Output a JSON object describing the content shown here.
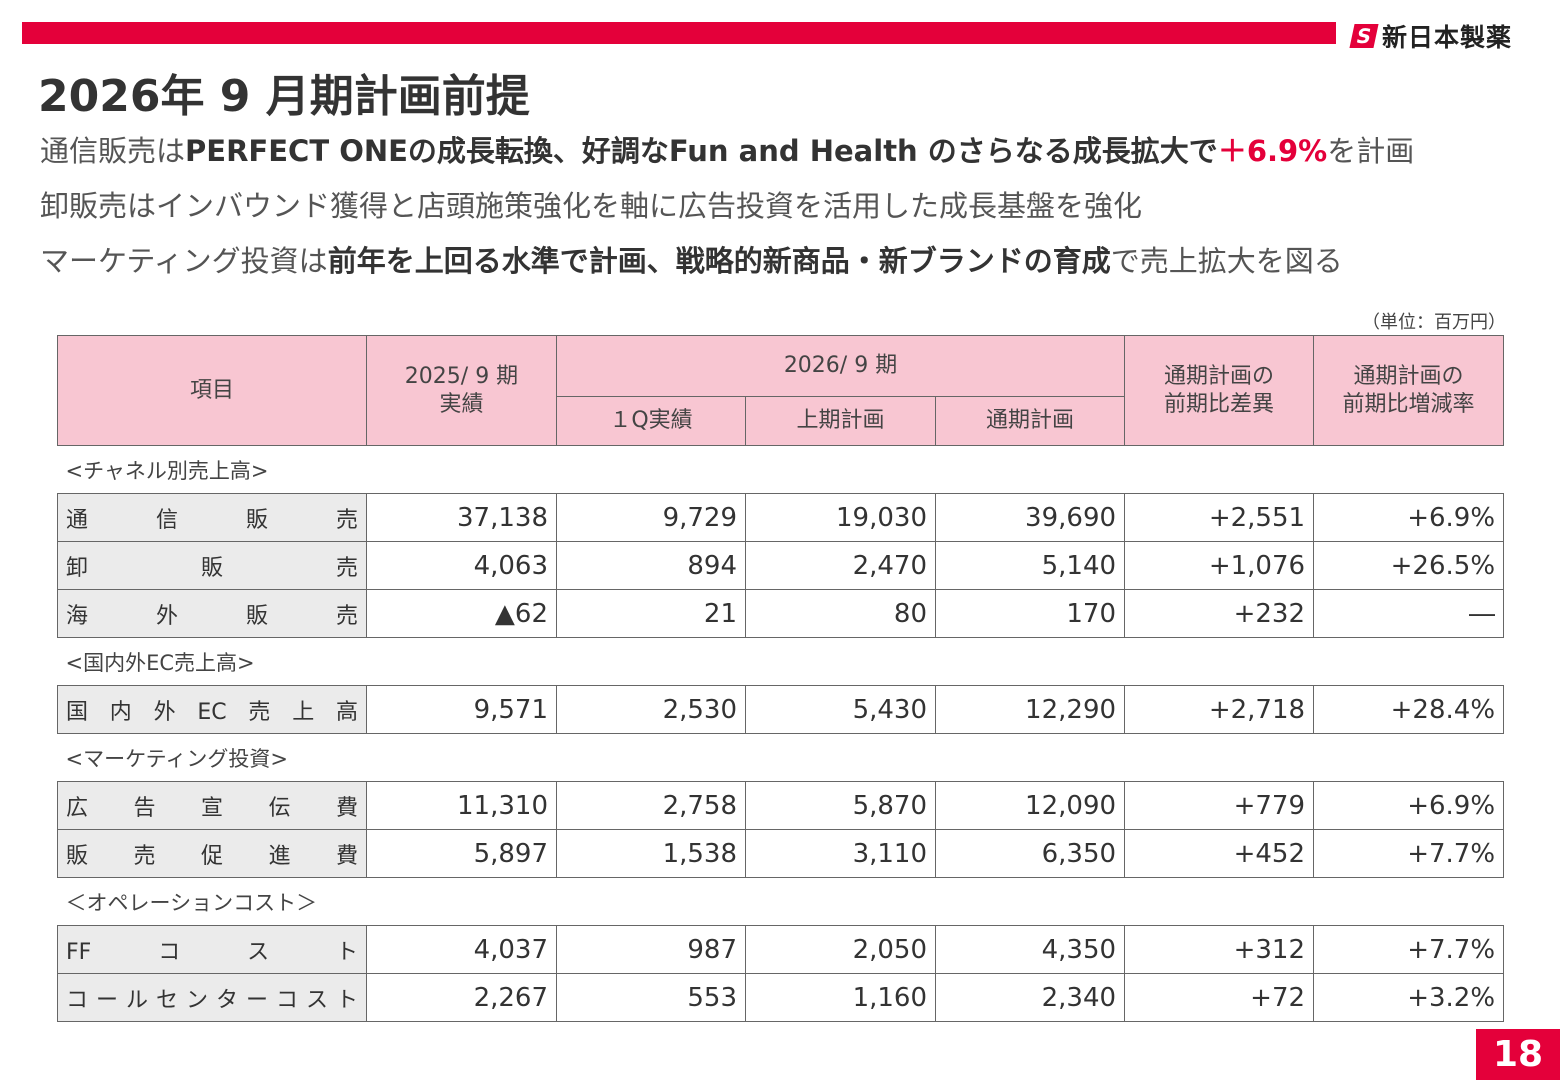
{
  "header": {
    "logo_text": "新日本製薬",
    "title": "2026年 9 月期計画前提"
  },
  "bullets": [
    {
      "pre": "通信販売は",
      "bold": "PERFECT ONEの成長転換、好調なFun and Health のさらなる成長拡大で",
      "red": "＋6.9%",
      "post": "を計画"
    },
    {
      "pre": "卸販売はインバウンド獲得と店頭施策強化を軸に広告投資を活用した成長基盤を強化"
    },
    {
      "pre": "マーケティング投資は",
      "bold": "前年を上回る水準で計画、戦略的新商品・新ブランドの育成",
      "post": "で売上拡大を図る"
    }
  ],
  "unit": "（単位：百万円）",
  "table": {
    "headers": {
      "item": "項目",
      "fy2025": "2025/ 9 期\n実績",
      "fy2026": "2026/ 9 期",
      "q1": "１Q実績",
      "h1": "上期計画",
      "full": "通期計画",
      "diff": "通期計画の\n前期比差異",
      "rate": "通期計画の\n前期比増減率"
    },
    "sections": [
      {
        "label": "<チャネル別売上高>",
        "rows": [
          {
            "label": "通信販売",
            "values": [
              "37,138",
              "9,729",
              "19,030",
              "39,690",
              "+2,551",
              "+6.9%"
            ]
          },
          {
            "label": "卸販売",
            "values": [
              "4,063",
              "894",
              "2,470",
              "5,140",
              "+1,076",
              "+26.5%"
            ]
          },
          {
            "label": "海外販売",
            "values": [
              "▲62",
              "21",
              "80",
              "170",
              "+232",
              "―"
            ]
          }
        ]
      },
      {
        "label": "<国内外EC売上高>",
        "rows": [
          {
            "label": "国内外EC売上高",
            "values": [
              "9,571",
              "2,530",
              "5,430",
              "12,290",
              "+2,718",
              "+28.4%"
            ]
          }
        ]
      },
      {
        "label": "<マーケティング投資>",
        "rows": [
          {
            "label": "広告宣伝費",
            "values": [
              "11,310",
              "2,758",
              "5,870",
              "12,090",
              "+779",
              "+6.9%"
            ]
          },
          {
            "label": "販売促進費",
            "values": [
              "5,897",
              "1,538",
              "3,110",
              "6,350",
              "+452",
              "+7.7%"
            ]
          }
        ]
      },
      {
        "label": "＜オペレーションコスト＞",
        "rows": [
          {
            "label": "FFコスト",
            "values": [
              "4,037",
              "987",
              "2,050",
              "4,350",
              "+312",
              "+7.7%"
            ]
          },
          {
            "label": "コールセンターコスト",
            "values": [
              "2,267",
              "553",
              "1,160",
              "2,340",
              "+72",
              "+3.2%"
            ]
          }
        ]
      }
    ]
  },
  "page_number": "18",
  "colors": {
    "accent": "#e4003a",
    "header_bg": "#f8c6d2",
    "label_bg": "#ebebeb"
  }
}
